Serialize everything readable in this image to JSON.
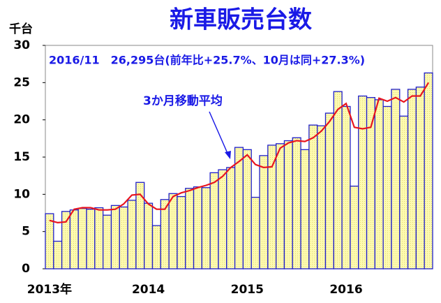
{
  "chart_data": {
    "type": "bar",
    "title": "新車販売台数",
    "y_label": "千台",
    "annotations": [
      "2016/11　26,295台(前年比+25.7%、10月は同+27.3%)",
      "3か月移動平均"
    ],
    "categories": [
      "2013年",
      null,
      null,
      null,
      null,
      null,
      null,
      null,
      null,
      null,
      null,
      null,
      "2014",
      null,
      null,
      null,
      null,
      null,
      null,
      null,
      null,
      null,
      null,
      null,
      "2015",
      null,
      null,
      null,
      null,
      null,
      null,
      null,
      null,
      null,
      null,
      null,
      "2016",
      null,
      null,
      null,
      null,
      null,
      null,
      null,
      null,
      null,
      null
    ],
    "series": [
      {
        "name": "販売台数",
        "type": "bar",
        "color": "#fdfab0",
        "stroke": "#1f1fcc",
        "values": [
          7.4,
          3.7,
          7.7,
          7.9,
          8.1,
          8.0,
          8.2,
          7.2,
          8.5,
          8.3,
          9.2,
          11.6,
          8.8,
          5.8,
          9.3,
          10.1,
          9.7,
          10.8,
          11.0,
          10.9,
          12.9,
          13.3,
          13.6,
          16.3,
          16.0,
          9.6,
          15.2,
          16.6,
          16.8,
          17.2,
          17.6,
          16.0,
          19.3,
          19.2,
          20.9,
          23.8,
          21.8,
          11.1,
          23.2,
          23.0,
          22.7,
          21.8,
          24.1,
          20.5,
          24.1,
          24.4,
          26.3
        ]
      },
      {
        "name": "3か月移動平均",
        "type": "line",
        "color": "#e8141e",
        "values": [
          6.5,
          6.2,
          6.3,
          8.0,
          8.2,
          8.2,
          7.9,
          7.9,
          8.0,
          8.7,
          9.9,
          10.0,
          8.7,
          8.0,
          8.0,
          9.7,
          10.2,
          10.5,
          10.9,
          11.2,
          11.6,
          12.4,
          13.6,
          14.4,
          15.3,
          14.0,
          13.6,
          13.7,
          16.2,
          16.9,
          17.2,
          17.1,
          17.6,
          18.5,
          19.8,
          21.4,
          22.2,
          19.0,
          18.8,
          19.0,
          22.9,
          22.5,
          23.0,
          22.4,
          23.2,
          23.2,
          25.0
        ]
      }
    ],
    "ylim": [
      0,
      30
    ],
    "yticks": [
      0,
      5,
      10,
      15,
      20,
      25,
      30
    ],
    "grid": false
  }
}
